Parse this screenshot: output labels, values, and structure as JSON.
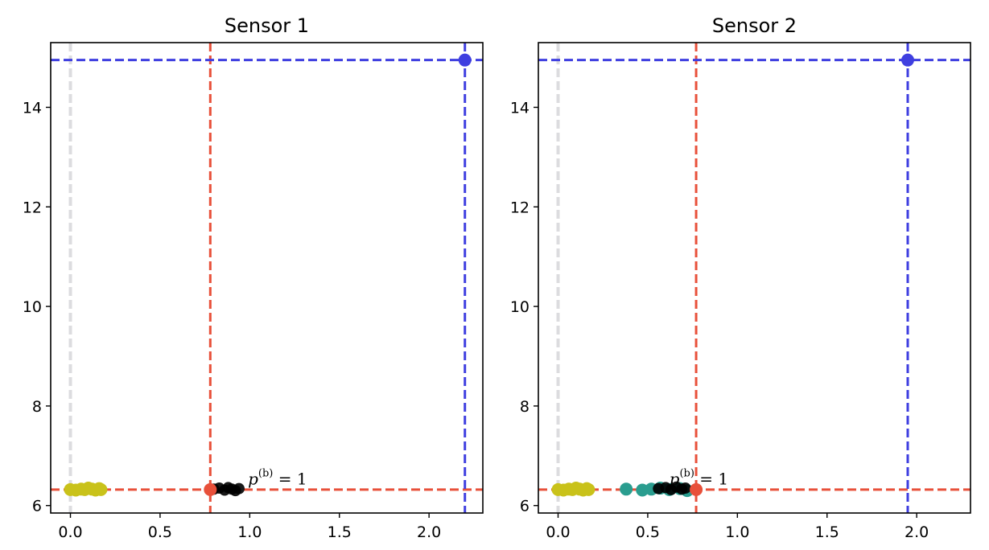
{
  "chart_data": [
    {
      "type": "scatter",
      "title": "Sensor 1",
      "xlim": [
        -0.11,
        2.3
      ],
      "ylim": [
        5.85,
        15.3
      ],
      "xticks": [
        {
          "value": 0.0,
          "label": "0.0"
        },
        {
          "value": 0.5,
          "label": "0.5"
        },
        {
          "value": 1.0,
          "label": "1.0"
        },
        {
          "value": 1.5,
          "label": "1.5"
        },
        {
          "value": 2.0,
          "label": "2.0"
        }
      ],
      "yticks": [
        {
          "value": 6,
          "label": "6"
        },
        {
          "value": 8,
          "label": "8"
        },
        {
          "value": 10,
          "label": "10"
        },
        {
          "value": 12,
          "label": "12"
        },
        {
          "value": 14,
          "label": "14"
        }
      ],
      "grid": false,
      "reference_lines": [
        {
          "orientation": "vertical",
          "value": 0.0,
          "color": "#d8d8dc",
          "style": "dashed"
        },
        {
          "orientation": "vertical",
          "value": 0.78,
          "color": "#e8503a",
          "style": "dashed"
        },
        {
          "orientation": "horizontal",
          "value": 6.32,
          "color": "#e8503a",
          "style": "dashed"
        },
        {
          "orientation": "vertical",
          "value": 2.2,
          "color": "#3f3fe0",
          "style": "dashed"
        },
        {
          "orientation": "horizontal",
          "value": 14.95,
          "color": "#3f3fe0",
          "style": "dashed"
        }
      ],
      "series": [
        {
          "color": "#c9c21a",
          "points": [
            [
              0.0,
              6.32
            ],
            [
              0.03,
              6.31
            ],
            [
              0.06,
              6.33
            ],
            [
              0.08,
              6.32
            ],
            [
              0.1,
              6.35
            ],
            [
              0.12,
              6.33
            ],
            [
              0.14,
              6.31
            ],
            [
              0.16,
              6.34
            ],
            [
              0.17,
              6.32
            ]
          ]
        },
        {
          "color": "#000000",
          "points": [
            [
              0.8,
              6.33
            ],
            [
              0.83,
              6.35
            ],
            [
              0.86,
              6.31
            ],
            [
              0.88,
              6.36
            ],
            [
              0.9,
              6.33
            ],
            [
              0.92,
              6.3
            ],
            [
              0.94,
              6.34
            ]
          ]
        },
        {
          "color": "#e8503a",
          "points": [
            [
              0.78,
              6.32
            ]
          ]
        },
        {
          "color": "#3f3fe0",
          "points": [
            [
              2.2,
              14.95
            ]
          ]
        }
      ],
      "annotations": [
        {
          "text": "p",
          "superscript": "(b)",
          "suffix": " = 1",
          "x": 0.99,
          "y": 6.42
        }
      ]
    },
    {
      "type": "scatter",
      "title": "Sensor 2",
      "xlim": [
        -0.11,
        2.3
      ],
      "ylim": [
        5.85,
        15.3
      ],
      "xticks": [
        {
          "value": 0.0,
          "label": "0.0"
        },
        {
          "value": 0.5,
          "label": "0.5"
        },
        {
          "value": 1.0,
          "label": "1.0"
        },
        {
          "value": 1.5,
          "label": "1.5"
        },
        {
          "value": 2.0,
          "label": "2.0"
        }
      ],
      "yticks": [
        {
          "value": 6,
          "label": "6"
        },
        {
          "value": 8,
          "label": "8"
        },
        {
          "value": 10,
          "label": "10"
        },
        {
          "value": 12,
          "label": "12"
        },
        {
          "value": 14,
          "label": "14"
        }
      ],
      "grid": false,
      "reference_lines": [
        {
          "orientation": "vertical",
          "value": 0.0,
          "color": "#d8d8dc",
          "style": "dashed"
        },
        {
          "orientation": "vertical",
          "value": 0.77,
          "color": "#e8503a",
          "style": "dashed"
        },
        {
          "orientation": "horizontal",
          "value": 6.32,
          "color": "#e8503a",
          "style": "dashed"
        },
        {
          "orientation": "vertical",
          "value": 1.95,
          "color": "#3f3fe0",
          "style": "dashed"
        },
        {
          "orientation": "horizontal",
          "value": 14.95,
          "color": "#3f3fe0",
          "style": "dashed"
        }
      ],
      "series": [
        {
          "color": "#c9c21a",
          "points": [
            [
              0.0,
              6.32
            ],
            [
              0.03,
              6.31
            ],
            [
              0.06,
              6.33
            ],
            [
              0.08,
              6.32
            ],
            [
              0.1,
              6.35
            ],
            [
              0.12,
              6.33
            ],
            [
              0.14,
              6.31
            ],
            [
              0.16,
              6.34
            ],
            [
              0.17,
              6.32
            ]
          ]
        },
        {
          "color": "#2a9d8f",
          "points": [
            [
              0.38,
              6.33
            ],
            [
              0.47,
              6.31
            ],
            [
              0.52,
              6.33
            ],
            [
              0.57,
              6.35
            ],
            [
              0.62,
              6.32
            ],
            [
              0.68,
              6.34
            ],
            [
              0.72,
              6.3
            ]
          ]
        },
        {
          "color": "#000000",
          "points": [
            [
              0.56,
              6.34
            ],
            [
              0.6,
              6.36
            ],
            [
              0.63,
              6.32
            ],
            [
              0.66,
              6.37
            ],
            [
              0.69,
              6.33
            ],
            [
              0.71,
              6.35
            ]
          ]
        },
        {
          "color": "#e8503a",
          "points": [
            [
              0.77,
              6.32
            ]
          ]
        },
        {
          "color": "#3f3fe0",
          "points": [
            [
              1.95,
              14.95
            ]
          ]
        }
      ],
      "annotations": [
        {
          "text": "p",
          "superscript": "(b)",
          "suffix": " = 1",
          "x": 0.62,
          "y": 6.42
        }
      ]
    }
  ]
}
